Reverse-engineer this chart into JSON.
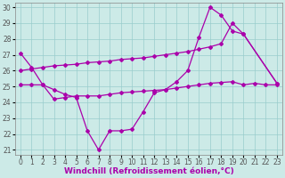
{
  "line1_x": [
    0,
    1,
    2,
    3,
    4,
    5,
    6,
    7,
    8,
    9,
    10,
    11,
    12,
    13,
    14,
    15,
    16,
    17,
    18,
    19,
    20,
    23
  ],
  "line1_y": [
    27.1,
    26.2,
    25.1,
    24.8,
    24.5,
    24.3,
    22.2,
    21.0,
    22.2,
    22.2,
    22.3,
    23.4,
    24.6,
    24.8,
    25.3,
    26.0,
    28.1,
    30.0,
    29.5,
    28.5,
    28.3,
    25.2
  ],
  "line2_x": [
    0,
    1,
    2,
    3,
    4,
    5,
    6,
    7,
    8,
    9,
    10,
    11,
    12,
    13,
    14,
    15,
    16,
    17,
    18,
    19,
    20,
    21,
    22,
    23
  ],
  "line2_y": [
    26.0,
    26.1,
    26.2,
    26.3,
    26.35,
    26.4,
    26.5,
    26.55,
    26.6,
    26.7,
    26.75,
    26.8,
    26.9,
    27.0,
    27.1,
    27.2,
    27.35,
    27.5,
    27.7,
    29.0,
    28.3,
    null,
    null,
    25.2
  ],
  "line3_x": [
    0,
    1,
    2,
    3,
    4,
    5,
    6,
    7,
    8,
    9,
    10,
    11,
    12,
    13,
    14,
    15,
    16,
    17,
    18,
    19,
    20,
    21,
    22,
    23
  ],
  "line3_y": [
    25.1,
    25.1,
    25.1,
    24.2,
    24.3,
    24.4,
    24.4,
    24.4,
    24.5,
    24.6,
    24.65,
    24.7,
    24.75,
    24.8,
    24.9,
    25.0,
    25.1,
    25.2,
    25.25,
    25.3,
    25.1,
    25.2,
    25.1,
    25.1
  ],
  "ylim": [
    21,
    30
  ],
  "xlim": [
    0,
    23
  ],
  "yticks": [
    21,
    22,
    23,
    24,
    25,
    26,
    27,
    28,
    29,
    30
  ],
  "xticks": [
    0,
    1,
    2,
    3,
    4,
    5,
    6,
    7,
    8,
    9,
    10,
    11,
    12,
    13,
    14,
    15,
    16,
    17,
    18,
    19,
    20,
    21,
    22,
    23
  ],
  "line_color": "#aa00aa",
  "bg_color": "#cceae7",
  "grid_color": "#99cccc",
  "xlabel": "Windchill (Refroidissement éolien,°C)",
  "xlabel_fontsize": 6.5,
  "tick_fontsize": 5.5,
  "marker": "D",
  "marker_size": 2.0,
  "line_width": 0.9
}
